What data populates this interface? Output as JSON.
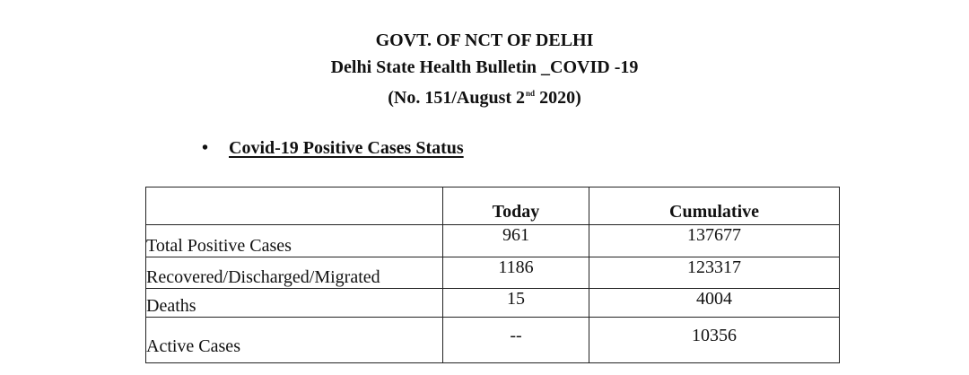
{
  "header": {
    "line1": "GOVT. OF NCT OF DELHI",
    "line2": "Delhi State Health Bulletin _COVID -19",
    "line3_prefix": "(No. 151/August 2",
    "line3_sup": "nd",
    "line3_suffix": " 2020)"
  },
  "section": {
    "bullet": "•",
    "title": "Covid-19 Positive Cases Status"
  },
  "table": {
    "columns": [
      "",
      "Today",
      "Cumulative"
    ],
    "rows": [
      {
        "label": "Total Positive Cases",
        "today": "961",
        "cumulative": "137677"
      },
      {
        "label": "Recovered/Discharged/Migrated",
        "today": "1186",
        "cumulative": "123317"
      },
      {
        "label": "Deaths",
        "today": "15",
        "cumulative": "4004"
      },
      {
        "label": "Active Cases",
        "today": "--",
        "cumulative": "10356"
      }
    ]
  }
}
